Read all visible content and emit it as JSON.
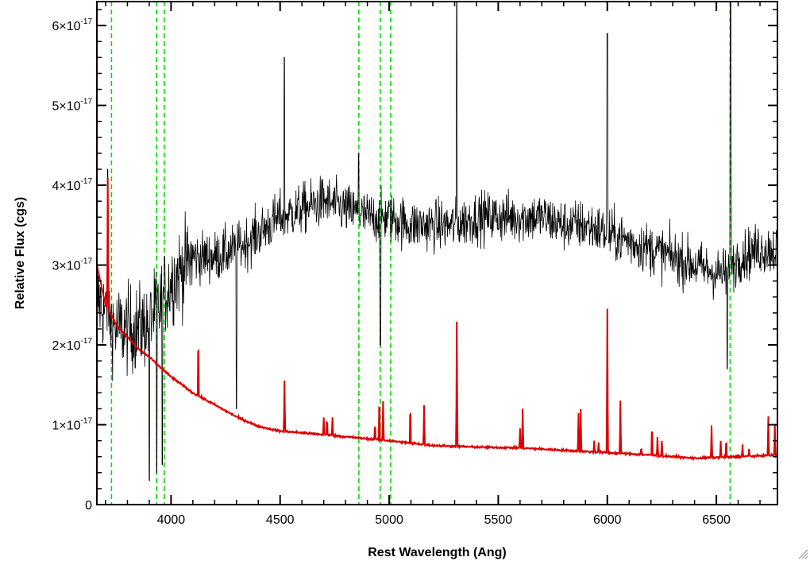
{
  "chart_data": {
    "type": "line",
    "title": "",
    "xlabel": "Rest Wavelength (Ang)",
    "ylabel": "Relative Flux (cgs)",
    "xlim": [
      3660,
      6780
    ],
    "ylim": [
      0,
      6.3e-17
    ],
    "x_ticks": [
      4000,
      4500,
      5000,
      5500,
      6000,
      6500
    ],
    "x_tick_labels": [
      "4000",
      "4500",
      "5000",
      "5500",
      "6000",
      "6500"
    ],
    "y_ticks": [
      0,
      1e-17,
      2e-17,
      3e-17,
      4e-17,
      5e-17,
      6e-17
    ],
    "y_tick_labels": [
      {
        "mantissa": "0",
        "exponent": ""
      },
      {
        "mantissa": "1×10",
        "exponent": "-17"
      },
      {
        "mantissa": "2×10",
        "exponent": "-17"
      },
      {
        "mantissa": "3×10",
        "exponent": "-17"
      },
      {
        "mantissa": "4×10",
        "exponent": "-17"
      },
      {
        "mantissa": "5×10",
        "exponent": "-17"
      },
      {
        "mantissa": "6×10",
        "exponent": "-17"
      }
    ],
    "grid": false,
    "series": [
      {
        "color": "#000000",
        "style": "noisy-spectrum",
        "x": [
          3660,
          3700,
          3750,
          3800,
          3850,
          3900,
          3950,
          4000,
          4100,
          4200,
          4300,
          4400,
          4500,
          4600,
          4700,
          4800,
          4900,
          5000,
          5100,
          5200,
          5300,
          5400,
          5500,
          5600,
          5700,
          5800,
          5900,
          6000,
          6100,
          6200,
          6300,
          6400,
          6500,
          6560,
          6600,
          6700,
          6780
        ],
        "y": [
          2.6e-17,
          2.4e-17,
          2.2e-17,
          2.2e-17,
          2.2e-17,
          2.3e-17,
          2.5e-17,
          2.8e-17,
          3.1e-17,
          3.1e-17,
          3.2e-17,
          3.4e-17,
          3.6e-17,
          3.7e-17,
          3.8e-17,
          3.7e-17,
          3.6e-17,
          3.6e-17,
          3.5e-17,
          3.5e-17,
          3.5e-17,
          3.6e-17,
          3.6e-17,
          3.6e-17,
          3.6e-17,
          3.5e-17,
          3.5e-17,
          3.4e-17,
          3.3e-17,
          3.2e-17,
          3.1e-17,
          3e-17,
          2.9e-17,
          2.9e-17,
          3.1e-17,
          3.2e-17,
          3.2e-17
        ],
        "lines": [
          {
            "x": 3710,
            "peak": 4.2e-17
          },
          {
            "x": 4520,
            "peak": 5.6e-17
          },
          {
            "x": 4860,
            "peak": 4.4e-17
          },
          {
            "x": 5310,
            "peak": 6.3e-17
          },
          {
            "x": 6000,
            "peak": 5.9e-17
          },
          {
            "x": 6565,
            "peak": 6.3e-17
          }
        ],
        "dips": [
          {
            "x": 3900,
            "trough": 3e-18
          },
          {
            "x": 3935,
            "trough": 4e-18
          },
          {
            "x": 3960,
            "trough": 5e-18
          },
          {
            "x": 4300,
            "trough": 1.2e-17
          },
          {
            "x": 4960,
            "trough": 2e-17
          },
          {
            "x": 6550,
            "trough": 1.7e-17
          }
        ]
      },
      {
        "color": "#dd0000",
        "style": "model",
        "x": [
          3660,
          3700,
          3750,
          3800,
          3850,
          3900,
          3950,
          4000,
          4100,
          4200,
          4300,
          4400,
          4500,
          4600,
          4800,
          5000,
          5200,
          5400,
          5600,
          5800,
          6000,
          6200,
          6400,
          6600,
          6780
        ],
        "y": [
          3e-17,
          2.5e-17,
          2.25e-17,
          2.1e-17,
          1.95e-17,
          1.85e-17,
          1.72e-17,
          1.6e-17,
          1.4e-17,
          1.25e-17,
          1.1e-17,
          9.8e-18,
          9.2e-18,
          9e-18,
          8.5e-18,
          8e-18,
          7.4e-18,
          7.2e-18,
          7.1e-18,
          6.8e-18,
          6.5e-18,
          6.2e-18,
          5.8e-18,
          6e-18,
          6.2e-18
        ],
        "lines": [
          {
            "x": 3710,
            "peak": 4.1e-17
          },
          {
            "x": 4125,
            "peak": 2.2e-17
          },
          {
            "x": 4520,
            "peak": 1.55e-17
          },
          {
            "x": 4700,
            "peak": 1.1e-17
          },
          {
            "x": 4715,
            "peak": 1.1e-17
          },
          {
            "x": 4740,
            "peak": 1.1e-17
          },
          {
            "x": 4935,
            "peak": 1.05e-17
          },
          {
            "x": 4955,
            "peak": 1.4e-17
          },
          {
            "x": 4972,
            "peak": 1.3e-17
          },
          {
            "x": 5097,
            "peak": 1.3e-17
          },
          {
            "x": 5160,
            "peak": 1.25e-17
          },
          {
            "x": 5310,
            "peak": 2.3e-17
          },
          {
            "x": 5600,
            "peak": 9.5e-18
          },
          {
            "x": 5612,
            "peak": 1.2e-17
          },
          {
            "x": 5868,
            "peak": 1.15e-17
          },
          {
            "x": 5878,
            "peak": 1.2e-17
          },
          {
            "x": 5940,
            "peak": 8e-18
          },
          {
            "x": 5960,
            "peak": 7.8e-18
          },
          {
            "x": 6000,
            "peak": 2.45e-17
          },
          {
            "x": 6060,
            "peak": 1.3e-17
          },
          {
            "x": 6155,
            "peak": 7.2e-18
          },
          {
            "x": 6205,
            "peak": 1.05e-17
          },
          {
            "x": 6230,
            "peak": 8.5e-18
          },
          {
            "x": 6250,
            "peak": 8e-18
          },
          {
            "x": 6478,
            "peak": 1e-17
          },
          {
            "x": 6520,
            "peak": 8e-18
          },
          {
            "x": 6545,
            "peak": 8.5e-18
          },
          {
            "x": 6620,
            "peak": 7.5e-18
          },
          {
            "x": 6650,
            "peak": 7e-18
          },
          {
            "x": 6738,
            "peak": 1.1e-17
          },
          {
            "x": 6768,
            "peak": 1e-17
          }
        ]
      }
    ],
    "vlines": {
      "color": "#00dd00",
      "style": "dashed",
      "x": [
        3727,
        3934,
        3969,
        4861,
        4959,
        5007,
        6563
      ]
    }
  }
}
